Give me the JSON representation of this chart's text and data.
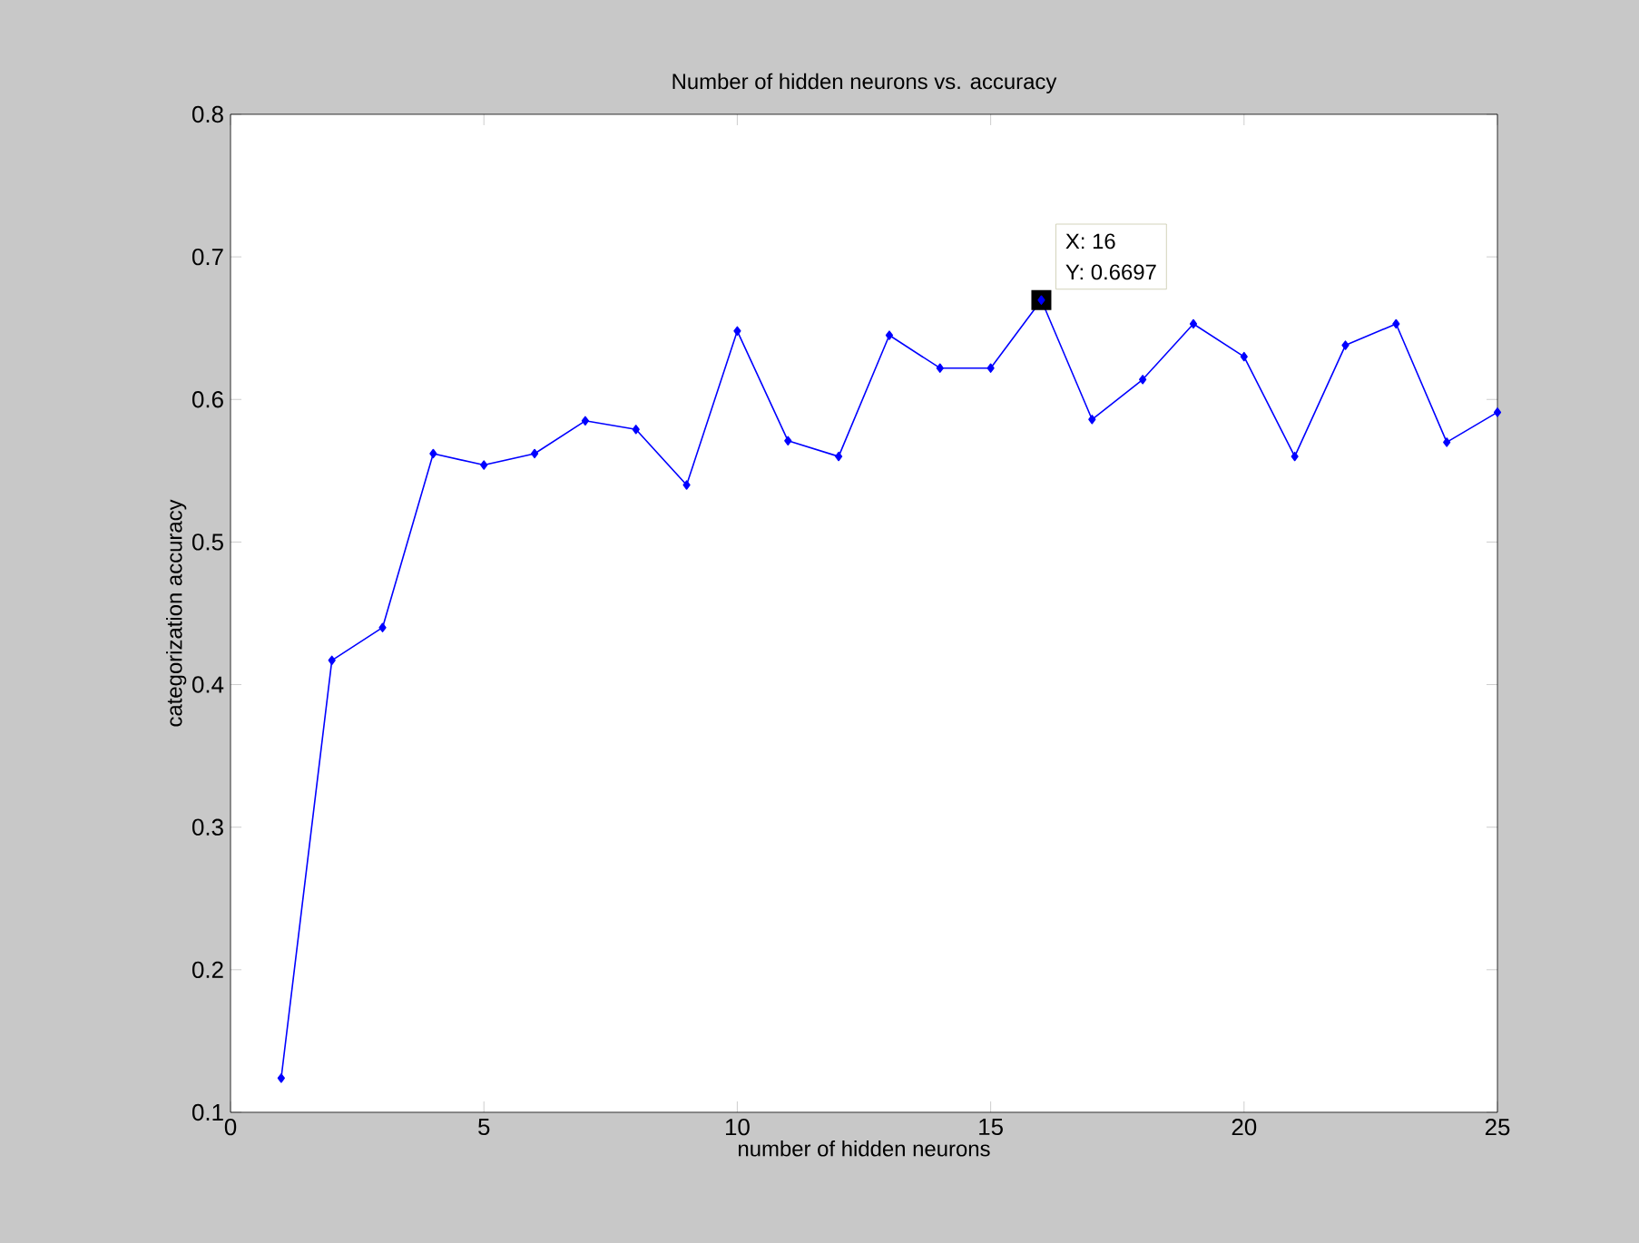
{
  "chart_data": {
    "type": "line",
    "title": "Number of hidden neurons vs. accuracy",
    "xlabel": "number of hidden neurons",
    "ylabel": "categorization accuracy",
    "x": [
      1,
      2,
      3,
      4,
      5,
      6,
      7,
      8,
      9,
      10,
      11,
      12,
      13,
      14,
      15,
      16,
      17,
      18,
      19,
      20,
      21,
      22,
      23,
      24,
      25
    ],
    "series": [
      {
        "color": "#0000ff",
        "values": [
          0.124,
          0.417,
          0.44,
          0.562,
          0.554,
          0.562,
          0.585,
          0.579,
          0.54,
          0.648,
          0.571,
          0.56,
          0.645,
          0.622,
          0.622,
          0.6697,
          0.586,
          0.614,
          0.653,
          0.63,
          0.56,
          0.638,
          0.653,
          0.57,
          0.591
        ]
      }
    ],
    "xlim": [
      0,
      25
    ],
    "xticks": [
      0,
      5,
      10,
      15,
      20,
      25
    ],
    "ylim": [
      0.1,
      0.8
    ],
    "yticks": [
      0.1,
      0.2,
      0.3,
      0.4,
      0.5,
      0.6,
      0.7,
      0.8
    ],
    "marker": "diamond",
    "line_style": "solid",
    "grid": false,
    "annotations": [
      {
        "text": "X: 16",
        "x": 16,
        "y": 0.6697
      },
      {
        "text": "Y: 0.6697",
        "x": 16,
        "y": 0.6697
      }
    ]
  }
}
